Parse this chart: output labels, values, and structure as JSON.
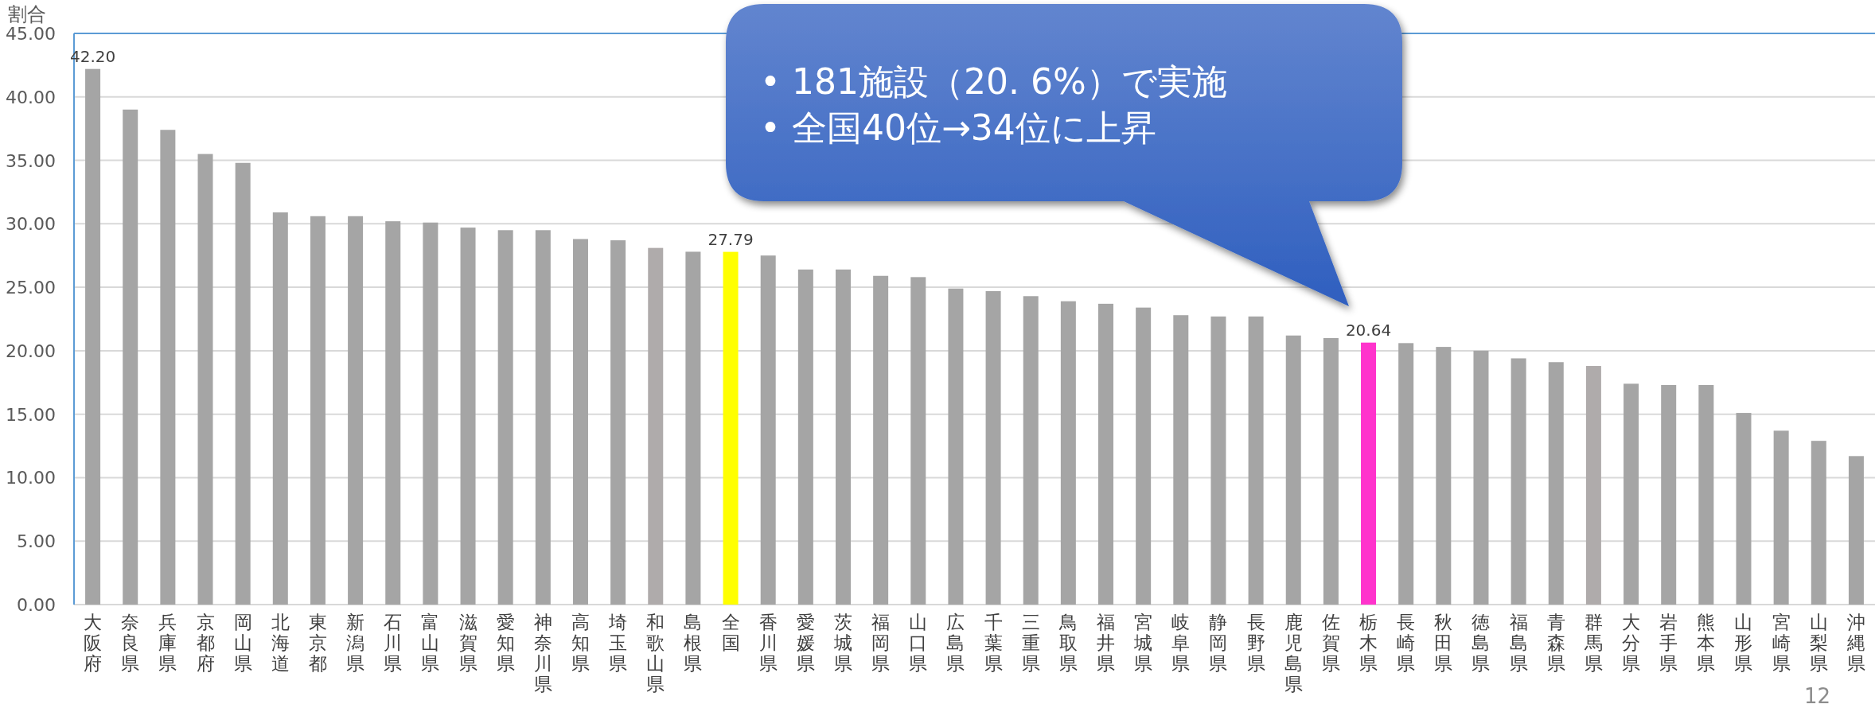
{
  "chart_data": {
    "type": "bar",
    "ylabel": "割合",
    "categories": [
      "大阪府",
      "奈良県",
      "兵庫県",
      "京都府",
      "岡山県",
      "北海道",
      "東京都",
      "新潟県",
      "石川県",
      "富山県",
      "滋賀県",
      "愛知県",
      "神奈川県",
      "高知県",
      "埼玉県",
      "和歌山県",
      "島根県",
      "全国",
      "香川県",
      "愛媛県",
      "茨城県",
      "福岡県",
      "山口県",
      "広島県",
      "千葉県",
      "三重県",
      "鳥取県",
      "福井県",
      "宮城県",
      "岐阜県",
      "静岡県",
      "長野県",
      "鹿児島県",
      "佐賀県",
      "栃木県",
      "長崎県",
      "秋田県",
      "徳島県",
      "福島県",
      "青森県",
      "群馬県",
      "大分県",
      "岩手県",
      "熊本県",
      "山形県",
      "宮崎県",
      "山梨県",
      "沖縄県"
    ],
    "values": [
      42.2,
      39.0,
      37.4,
      35.5,
      34.8,
      30.9,
      30.6,
      30.6,
      30.2,
      30.1,
      29.7,
      29.5,
      29.5,
      28.8,
      28.7,
      28.1,
      27.8,
      27.79,
      27.5,
      26.4,
      26.4,
      25.9,
      25.8,
      24.9,
      24.7,
      24.3,
      23.9,
      23.7,
      23.4,
      22.8,
      22.7,
      22.7,
      21.2,
      21.0,
      20.64,
      20.6,
      20.3,
      20.0,
      19.4,
      19.1,
      18.8,
      17.4,
      17.3,
      17.3,
      15.1,
      13.7,
      12.9,
      11.7
    ],
    "colors": [
      "#a5a5a5",
      "#a5a5a5",
      "#a5a5a5",
      "#a5a5a5",
      "#a5a5a5",
      "#a5a5a5",
      "#a5a5a5",
      "#a5a5a5",
      "#a5a5a5",
      "#a5a5a5",
      "#a5a5a5",
      "#a5a5a5",
      "#a5a5a5",
      "#a5a5a5",
      "#a5a5a5",
      "#afabab",
      "#a5a5a5",
      "#ffff00",
      "#a5a5a5",
      "#a5a5a5",
      "#a5a5a5",
      "#a5a5a5",
      "#a5a5a5",
      "#a5a5a5",
      "#a5a5a5",
      "#a5a5a5",
      "#a5a5a5",
      "#a5a5a5",
      "#a5a5a5",
      "#a5a5a5",
      "#a5a5a5",
      "#a5a5a5",
      "#a5a5a5",
      "#a5a5a5",
      "#ff33cc",
      "#a5a5a5",
      "#a5a5a5",
      "#a5a5a5",
      "#a5a5a5",
      "#a5a5a5",
      "#afabab",
      "#a5a5a5",
      "#a5a5a5",
      "#a5a5a5",
      "#a5a5a5",
      "#a5a5a5",
      "#a5a5a5",
      "#a5a5a5"
    ],
    "value_labels": [
      "42.20",
      null,
      null,
      null,
      null,
      null,
      null,
      null,
      null,
      null,
      null,
      null,
      null,
      null,
      null,
      null,
      null,
      "27.79",
      null,
      null,
      null,
      null,
      null,
      null,
      null,
      null,
      null,
      null,
      null,
      null,
      null,
      null,
      null,
      null,
      "20.64",
      null,
      null,
      null,
      null,
      null,
      null,
      null,
      null,
      null,
      null,
      null,
      null,
      null
    ],
    "ylim": [
      0,
      45
    ],
    "yticks": [
      {
        "value": 0,
        "label": "0.00"
      },
      {
        "value": 5,
        "label": "5.00"
      },
      {
        "value": 10,
        "label": "10.00"
      },
      {
        "value": 15,
        "label": "15.00"
      },
      {
        "value": 20,
        "label": "20.00"
      },
      {
        "value": 25,
        "label": "25.00"
      },
      {
        "value": 30,
        "label": "30.00"
      },
      {
        "value": 35,
        "label": "35.00"
      },
      {
        "value": 40,
        "label": "40.00"
      },
      {
        "value": 45,
        "label": "45.00"
      }
    ],
    "grid": "y",
    "annotations": [
      "• 181施設（20. 6%）で実施\n• 全国40位→34位に上昇",
      "12"
    ]
  }
}
